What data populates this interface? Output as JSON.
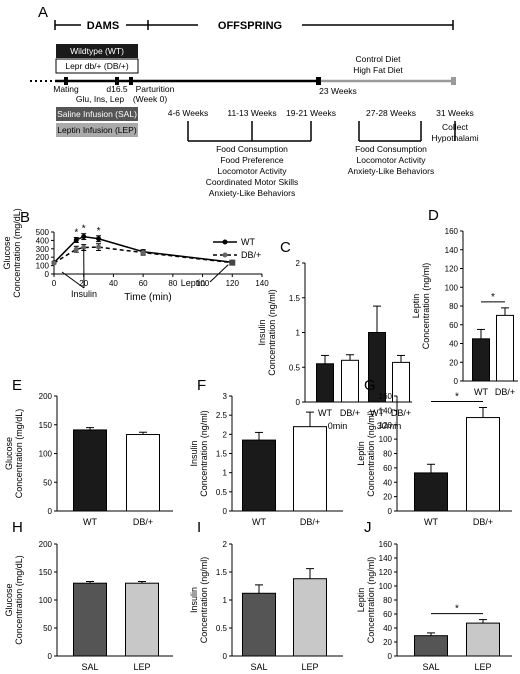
{
  "timeline": {
    "panel": "A",
    "dams_label": "DAMS",
    "offspring_label": "OFFSPRING",
    "legend_wt": "Wildtype (WT)",
    "legend_db": "Lepr db/+ (DB/+)",
    "legend_sal": "Saline Infusion (SAL)",
    "legend_lep": "Leptin Infusion (LEP)",
    "diet1": "Control Diet",
    "diet2": "High Fat Diet",
    "mating": "Mating",
    "glu": "Glu, Ins, Lep",
    "d165": "d16.5",
    "parturition": "Parturition",
    "week0": "(Week 0)",
    "w23": "23 Weeks",
    "w46": "4-6 Weeks",
    "w1113": "11-13 Weeks",
    "w1921": "19-21 Weeks",
    "w2728": "27-28 Weeks",
    "w31": "31 Weeks",
    "group1": [
      "Food Consumption",
      "Food Preference",
      "Locomotor Activity",
      "Coordinated Motor Skills",
      "Anxiety-Like Behaviors"
    ],
    "group2": [
      "Food Consumption",
      "Locomotor Activity",
      "Anxiety-Like Behaviors"
    ],
    "group3": [
      "Collect",
      "Hypothalami"
    ],
    "colors": {
      "wt_box": "#1a1a1a",
      "sal_box": "#555555",
      "lep_box": "#aaaaaa",
      "diet_line": "#9a9a9a"
    }
  },
  "chart_data": [
    {
      "panel": "B",
      "type": "line",
      "ylabel": "Glucose Concentration (mg/dL)",
      "xlabel": "Time (min)",
      "xlim": [
        0,
        140
      ],
      "ylim": [
        0,
        500
      ],
      "xticks": [
        0,
        20,
        40,
        60,
        80,
        100,
        120,
        140
      ],
      "yticks": [
        0,
        100,
        200,
        300,
        400,
        500
      ],
      "series": [
        {
          "name": "WT",
          "x": [
            0,
            15,
            20,
            30,
            60,
            120
          ],
          "y": [
            135,
            405,
            445,
            420,
            265,
            140
          ],
          "err": [
            10,
            30,
            35,
            35,
            25,
            10
          ]
        },
        {
          "name": "DB/+",
          "x": [
            0,
            15,
            20,
            30,
            60,
            120
          ],
          "y": [
            130,
            295,
            315,
            320,
            255,
            135
          ],
          "err": [
            10,
            35,
            35,
            40,
            30,
            10
          ]
        }
      ],
      "significance": [
        "*",
        "*",
        "*"
      ],
      "annotations": [
        "Insulin",
        "Leptin"
      ]
    },
    {
      "panel": "C",
      "type": "bar",
      "ylabel": "Insulin Concentration (ng/ml)",
      "ylim": [
        0,
        2
      ],
      "yticks": [
        0,
        0.5,
        1,
        1.5,
        2
      ],
      "categories": [
        "WT",
        "DB/+",
        "WT",
        "DB/+"
      ],
      "groups": [
        "0min",
        "30min"
      ],
      "values": [
        0.55,
        0.6,
        1.0,
        0.57
      ],
      "err": [
        0.12,
        0.08,
        0.38,
        0.1
      ]
    },
    {
      "panel": "D",
      "type": "bar",
      "ylabel": "Leptin Concentration (ng/ml)",
      "ylim": [
        0,
        160
      ],
      "yticks": [
        0,
        20,
        40,
        60,
        80,
        100,
        120,
        140,
        160
      ],
      "categories": [
        "WT",
        "DB/+"
      ],
      "values": [
        45,
        70
      ],
      "err": [
        10,
        8
      ],
      "significance": "*"
    },
    {
      "panel": "E",
      "type": "bar",
      "ylabel": "Glucose Concentration (mg/dL)",
      "ylim": [
        0,
        200
      ],
      "yticks": [
        0,
        50,
        100,
        150,
        200
      ],
      "categories": [
        "WT",
        "DB/+"
      ],
      "values": [
        141,
        133
      ],
      "err": [
        4,
        4
      ]
    },
    {
      "panel": "F",
      "type": "bar",
      "ylabel": "Insulin Concentration (ng/ml)",
      "ylim": [
        0,
        3
      ],
      "yticks": [
        0,
        0.5,
        1,
        1.5,
        2,
        2.5,
        3
      ],
      "categories": [
        "WT",
        "DB/+"
      ],
      "values": [
        1.85,
        2.2
      ],
      "err": [
        0.2,
        0.38
      ]
    },
    {
      "panel": "G",
      "type": "bar",
      "ylabel": "Leptin Concentration (ng/ml)",
      "ylim": [
        0,
        160
      ],
      "yticks": [
        0,
        20,
        40,
        60,
        80,
        100,
        120,
        140,
        160
      ],
      "categories": [
        "WT",
        "DB/+"
      ],
      "values": [
        53,
        130
      ],
      "err": [
        12,
        14
      ],
      "significance": "*"
    },
    {
      "panel": "H",
      "type": "bar",
      "ylabel": "Glucose Concentration (mg/dL)",
      "ylim": [
        0,
        200
      ],
      "yticks": [
        0,
        50,
        100,
        150,
        200
      ],
      "categories": [
        "SAL",
        "LEP"
      ],
      "values": [
        130,
        130
      ],
      "err": [
        3,
        3
      ]
    },
    {
      "panel": "I",
      "type": "bar",
      "ylabel": "Insulin Concentration (ng/ml)",
      "ylim": [
        0,
        2
      ],
      "yticks": [
        0,
        0.5,
        1,
        1.5,
        2
      ],
      "categories": [
        "SAL",
        "LEP"
      ],
      "values": [
        1.12,
        1.38
      ],
      "err": [
        0.15,
        0.18
      ]
    },
    {
      "panel": "J",
      "type": "bar",
      "ylabel": "Leptin Concentration (ng/ml)",
      "ylim": [
        0,
        160
      ],
      "yticks": [
        0,
        20,
        40,
        60,
        80,
        100,
        120,
        140,
        160
      ],
      "categories": [
        "SAL",
        "LEP"
      ],
      "values": [
        29,
        47
      ],
      "err": [
        4,
        5
      ],
      "significance": "*"
    }
  ]
}
